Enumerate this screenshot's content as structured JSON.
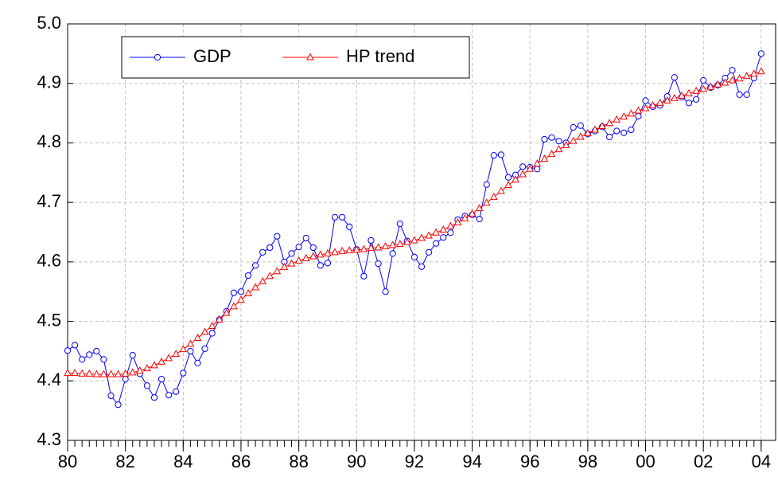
{
  "chart_data": {
    "type": "line",
    "x": [
      1980,
      1980.25,
      1980.5,
      1980.75,
      1981,
      1981.25,
      1981.5,
      1981.75,
      1982,
      1982.25,
      1982.5,
      1982.75,
      1983,
      1983.25,
      1983.5,
      1983.75,
      1984,
      1984.25,
      1984.5,
      1984.75,
      1985,
      1985.25,
      1985.5,
      1985.75,
      1986,
      1986.25,
      1986.5,
      1986.75,
      1987,
      1987.25,
      1987.5,
      1987.75,
      1988,
      1988.25,
      1988.5,
      1988.75,
      1989,
      1989.25,
      1989.5,
      1989.75,
      1990,
      1990.25,
      1990.5,
      1990.75,
      1991,
      1991.25,
      1991.5,
      1991.75,
      1992,
      1992.25,
      1992.5,
      1992.75,
      1993,
      1993.25,
      1993.5,
      1993.75,
      1994,
      1994.25,
      1994.5,
      1994.75,
      1995,
      1995.25,
      1995.5,
      1995.75,
      1996,
      1996.25,
      1996.5,
      1996.75,
      1997,
      1997.25,
      1997.5,
      1997.75,
      1998,
      1998.25,
      1998.5,
      1998.75,
      1999,
      1999.25,
      1999.5,
      1999.75,
      2000,
      2000.25,
      2000.5,
      2000.75,
      2001,
      2001.25,
      2001.5,
      2001.75,
      2002,
      2002.25,
      2002.5,
      2002.75,
      2003,
      2003.25,
      2003.5,
      2003.75,
      2004
    ],
    "series": [
      {
        "name": "GDP",
        "color": "#0000ff",
        "marker": "circle",
        "values": [
          4.451,
          4.46,
          4.436,
          4.444,
          4.45,
          4.436,
          4.375,
          4.36,
          4.403,
          4.443,
          4.412,
          4.392,
          4.372,
          4.403,
          4.376,
          4.382,
          4.413,
          4.45,
          4.43,
          4.454,
          4.48,
          4.503,
          4.517,
          4.548,
          4.55,
          4.577,
          4.594,
          4.616,
          4.624,
          4.643,
          4.6,
          4.614,
          4.625,
          4.64,
          4.624,
          4.594,
          4.598,
          4.675,
          4.675,
          4.659,
          4.621,
          4.576,
          4.636,
          4.597,
          4.55,
          4.614,
          4.664,
          4.635,
          4.608,
          4.592,
          4.616,
          4.631,
          4.641,
          4.649,
          4.671,
          4.677,
          4.679,
          4.672,
          4.73,
          4.779,
          4.78,
          4.742,
          4.746,
          4.76,
          4.759,
          4.756,
          4.806,
          4.809,
          4.803,
          4.8,
          4.826,
          4.829,
          4.815,
          4.82,
          4.827,
          4.81,
          4.82,
          4.817,
          4.822,
          4.845,
          4.871,
          4.861,
          4.863,
          4.878,
          4.91,
          4.877,
          4.867,
          4.873,
          4.905,
          4.893,
          4.897,
          4.909,
          4.922,
          4.881,
          4.881,
          4.909,
          4.95
        ]
      },
      {
        "name": "HP trend",
        "color": "#ff0000",
        "marker": "triangle",
        "values": [
          4.413,
          4.413,
          4.412,
          4.412,
          4.411,
          4.411,
          4.411,
          4.411,
          4.412,
          4.414,
          4.417,
          4.421,
          4.426,
          4.432,
          4.438,
          4.445,
          4.453,
          4.462,
          4.472,
          4.482,
          4.492,
          4.503,
          4.514,
          4.525,
          4.536,
          4.547,
          4.557,
          4.567,
          4.576,
          4.584,
          4.591,
          4.597,
          4.602,
          4.606,
          4.609,
          4.612,
          4.614,
          4.616,
          4.618,
          4.619,
          4.62,
          4.621,
          4.623,
          4.624,
          4.626,
          4.628,
          4.63,
          4.633,
          4.636,
          4.64,
          4.644,
          4.649,
          4.654,
          4.66,
          4.666,
          4.673,
          4.681,
          4.69,
          4.699,
          4.709,
          4.719,
          4.729,
          4.738,
          4.747,
          4.756,
          4.765,
          4.773,
          4.781,
          4.789,
          4.796,
          4.803,
          4.81,
          4.816,
          4.822,
          4.828,
          4.833,
          4.839,
          4.844,
          4.849,
          4.854,
          4.858,
          4.863,
          4.867,
          4.871,
          4.875,
          4.879,
          4.883,
          4.887,
          4.89,
          4.894,
          4.898,
          4.901,
          4.905,
          4.908,
          4.912,
          4.916,
          4.92
        ]
      }
    ],
    "xlim": [
      1980,
      2004.5
    ],
    "xticks": [
      {
        "value": 1980,
        "label": "80"
      },
      {
        "value": 1982,
        "label": "82"
      },
      {
        "value": 1984,
        "label": "84"
      },
      {
        "value": 1986,
        "label": "86"
      },
      {
        "value": 1988,
        "label": "88"
      },
      {
        "value": 1990,
        "label": "90"
      },
      {
        "value": 1992,
        "label": "92"
      },
      {
        "value": 1994,
        "label": "94"
      },
      {
        "value": 1996,
        "label": "96"
      },
      {
        "value": 1998,
        "label": "98"
      },
      {
        "value": 2000,
        "label": "00"
      },
      {
        "value": 2002,
        "label": "02"
      },
      {
        "value": 2004,
        "label": "04"
      }
    ],
    "ylim": [
      4.3,
      5.0
    ],
    "yticks": [
      4.3,
      4.4,
      4.5,
      4.6,
      4.7,
      4.8,
      4.9,
      {
        "value": 5,
        "label": "5.0"
      }
    ],
    "grid": true,
    "legend": "top-left"
  }
}
